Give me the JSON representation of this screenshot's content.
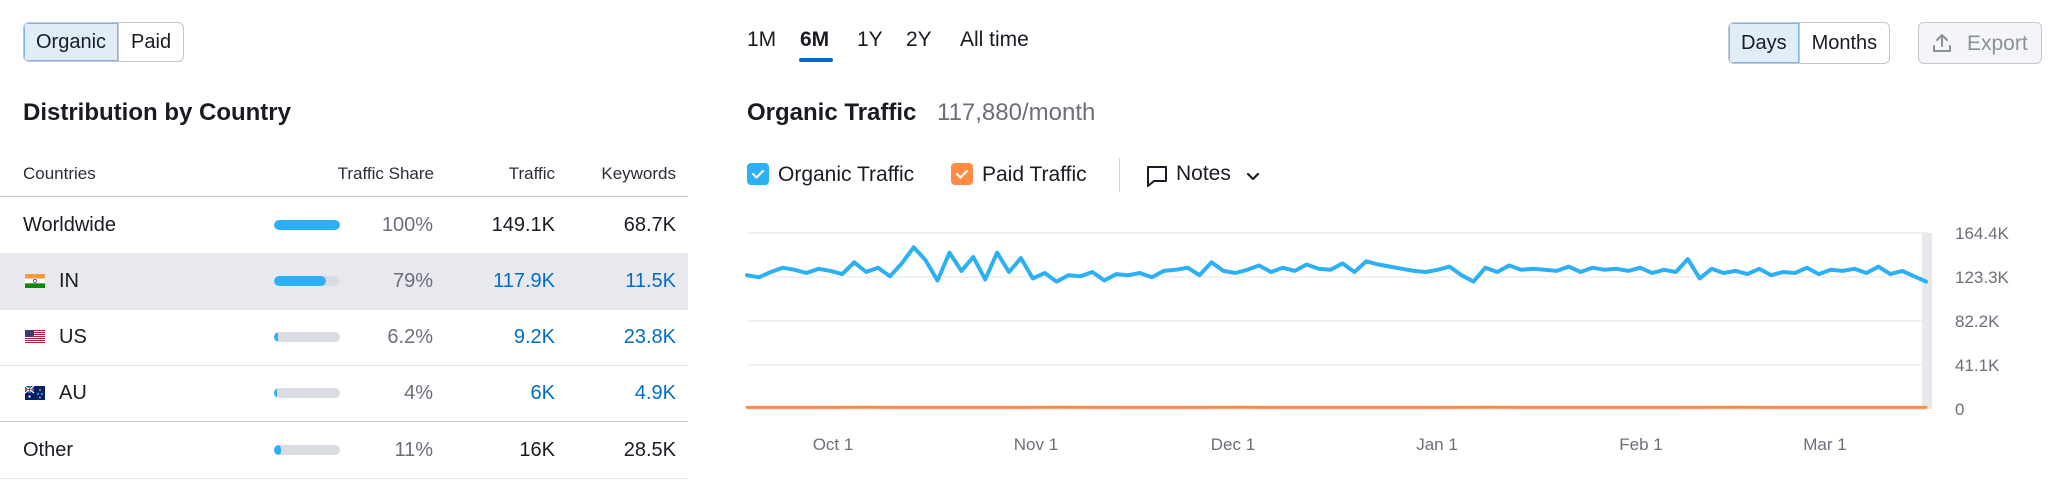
{
  "traffic_type": {
    "options": [
      "Organic",
      "Paid"
    ],
    "active": "Organic"
  },
  "distribution": {
    "title": "Distribution by Country",
    "headers": {
      "countries": "Countries",
      "share": "Traffic Share",
      "traffic": "Traffic",
      "keywords": "Keywords"
    },
    "rows": [
      {
        "name": "Worldwide",
        "flag": "",
        "share": "100%",
        "share_value": 1.0,
        "traffic": "149.1K",
        "keywords": "68.7K",
        "highlight": false,
        "linked": false
      },
      {
        "name": "IN",
        "flag": "india-flag-icon",
        "share": "79%",
        "share_value": 0.79,
        "traffic": "117.9K",
        "keywords": "11.5K",
        "highlight": true,
        "linked": true
      },
      {
        "name": "US",
        "flag": "usa-flag-icon",
        "share": "6.2%",
        "share_value": 0.062,
        "traffic": "9.2K",
        "keywords": "23.8K",
        "highlight": false,
        "linked": true
      },
      {
        "name": "AU",
        "flag": "australia-flag-icon",
        "share": "4%",
        "share_value": 0.04,
        "traffic": "6K",
        "keywords": "4.9K",
        "highlight": false,
        "linked": true
      },
      {
        "name": "Other",
        "flag": "",
        "share": "11%",
        "share_value": 0.11,
        "traffic": "16K",
        "keywords": "28.5K",
        "highlight": false,
        "linked": false
      }
    ]
  },
  "periods": {
    "options": [
      "1M",
      "6M",
      "1Y",
      "2Y",
      "All time"
    ],
    "active": "6M"
  },
  "granularity": {
    "options": [
      "Days",
      "Months"
    ],
    "active": "Days"
  },
  "export_label": "Export",
  "traffic_header": {
    "title": "Organic Traffic",
    "value": "117,880/month"
  },
  "legend": {
    "organic": {
      "label": "Organic Traffic",
      "color": "#2cb0f5",
      "checked": true
    },
    "paid": {
      "label": "Paid Traffic",
      "color": "#ff8c42",
      "checked": true
    },
    "notes_label": "Notes"
  },
  "chart_data": {
    "type": "line",
    "x_tick_labels": [
      "Oct 1",
      "Nov 1",
      "Dec 1",
      "Jan 1",
      "Feb 1",
      "Mar 1"
    ],
    "y_tick_labels": [
      "164.4K",
      "123.3K",
      "82.2K",
      "41.1K",
      "0"
    ],
    "ylim": [
      0,
      164400
    ],
    "grid": true,
    "series": [
      {
        "name": "Organic Traffic",
        "color": "#2cb0f5",
        "values": [
          125000,
          123000,
          128000,
          132000,
          130000,
          127000,
          131000,
          129000,
          126000,
          137000,
          128000,
          132000,
          124000,
          136000,
          151000,
          139000,
          120000,
          146000,
          129000,
          142000,
          121000,
          146000,
          128000,
          141000,
          122000,
          127000,
          119000,
          125000,
          124000,
          128000,
          120000,
          126000,
          125000,
          127000,
          123000,
          129000,
          130000,
          132000,
          125000,
          137000,
          129000,
          127000,
          130000,
          134000,
          128000,
          132000,
          129000,
          135000,
          131000,
          130000,
          136000,
          128000,
          138000,
          135000,
          133000,
          131000,
          129000,
          128000,
          130000,
          133000,
          125000,
          119000,
          132000,
          128000,
          134000,
          130000,
          131000,
          130000,
          129000,
          133000,
          128000,
          132000,
          130000,
          131000,
          129000,
          132000,
          127000,
          130000,
          128000,
          140000,
          122000,
          131000,
          127000,
          129000,
          126000,
          131000,
          125000,
          128000,
          127000,
          132000,
          126000,
          130000,
          129000,
          131000,
          127000,
          133000,
          126000,
          129000,
          124000,
          119000
        ]
      },
      {
        "name": "Paid Traffic",
        "color": "#ff8c42",
        "values": [
          1500,
          1500,
          1600,
          1500,
          1500,
          1600,
          1500,
          1500,
          1600,
          1500,
          1500,
          1500,
          1600,
          1500,
          1500,
          1500,
          1600,
          1500,
          1500,
          1500
        ]
      }
    ]
  }
}
